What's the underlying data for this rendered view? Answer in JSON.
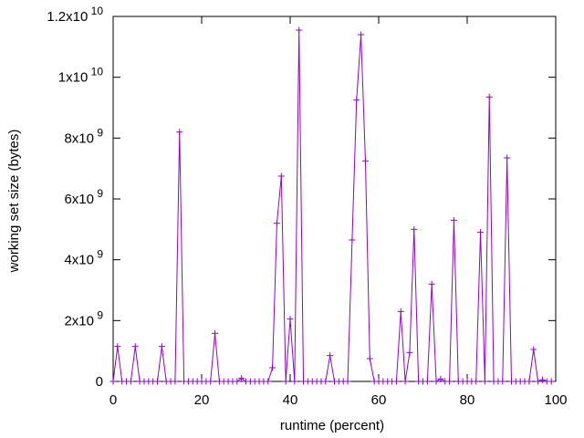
{
  "chart_data": {
    "type": "line",
    "title": "",
    "xlabel": "runtime (percent)",
    "ylabel": "working set size (bytes)",
    "xlim": [
      0,
      100
    ],
    "ylim": [
      0,
      12000000000
    ],
    "grid": false,
    "legend": "none",
    "x_ticks": [
      {
        "value": 0,
        "label": "0"
      },
      {
        "value": 20,
        "label": "20"
      },
      {
        "value": 40,
        "label": "40"
      },
      {
        "value": 60,
        "label": "60"
      },
      {
        "value": 80,
        "label": "80"
      },
      {
        "value": 100,
        "label": "100"
      }
    ],
    "y_ticks": [
      {
        "value": 0,
        "mant": "0",
        "exp": ""
      },
      {
        "value": 2000000000,
        "mant": "2x10",
        "exp": "9"
      },
      {
        "value": 4000000000,
        "mant": "4x10",
        "exp": "9"
      },
      {
        "value": 6000000000,
        "mant": "6x10",
        "exp": "9"
      },
      {
        "value": 8000000000,
        "mant": "8x10",
        "exp": "9"
      },
      {
        "value": 10000000000,
        "mant": "1x10",
        "exp": "10"
      },
      {
        "value": 12000000000,
        "mant": "1.2x10",
        "exp": "10"
      }
    ],
    "series": [
      {
        "color": "#9400d3",
        "x": [
          0,
          1,
          2,
          3,
          4,
          5,
          6,
          7,
          8,
          9,
          10,
          11,
          12,
          13,
          14,
          15,
          16,
          17,
          18,
          19,
          20,
          21,
          22,
          23,
          24,
          25,
          26,
          27,
          28,
          29,
          30,
          31,
          32,
          33,
          34,
          35,
          36,
          37,
          38,
          39,
          40,
          41,
          42,
          43,
          44,
          45,
          46,
          47,
          48,
          49,
          50,
          51,
          52,
          53,
          54,
          55,
          56,
          57,
          58,
          59,
          60,
          61,
          62,
          63,
          64,
          65,
          66,
          67,
          68,
          69,
          70,
          71,
          72,
          73,
          74,
          75,
          76,
          77,
          78,
          79,
          80,
          81,
          82,
          83,
          84,
          85,
          86,
          87,
          88,
          89,
          90,
          91,
          92,
          93,
          94,
          95,
          96,
          97,
          98,
          99
        ],
        "values": [
          0,
          1150000000,
          0,
          0,
          0,
          1150000000,
          0,
          0,
          0,
          0,
          0,
          1150000000,
          0,
          0,
          0,
          8200000000,
          0,
          0,
          0,
          0,
          0,
          0,
          0,
          1580000000,
          0,
          0,
          0,
          0,
          0,
          100000000,
          0,
          0,
          0,
          0,
          0,
          0,
          450000000,
          5200000000,
          6750000000,
          0,
          2050000000,
          0,
          11550000000,
          0,
          0,
          0,
          0,
          0,
          0,
          850000000,
          0,
          0,
          0,
          0,
          4650000000,
          9250000000,
          11400000000,
          7250000000,
          750000000,
          0,
          0,
          0,
          0,
          0,
          0,
          2300000000,
          0,
          950000000,
          5000000000,
          0,
          0,
          0,
          3200000000,
          0,
          80000000,
          0,
          0,
          5300000000,
          0,
          0,
          0,
          0,
          0,
          4900000000,
          0,
          9350000000,
          0,
          0,
          0,
          7350000000,
          0,
          0,
          0,
          0,
          0,
          1050000000,
          0,
          50000000,
          0,
          0
        ]
      }
    ]
  }
}
